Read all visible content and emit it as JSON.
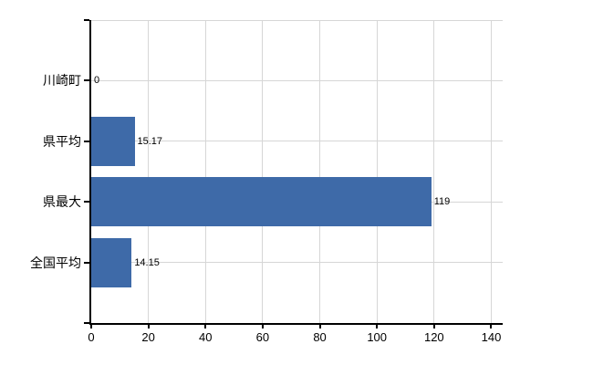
{
  "chart_data": {
    "type": "bar",
    "orientation": "horizontal",
    "title": "",
    "xlabel": "",
    "ylabel": "",
    "categories": [
      "川崎町",
      "県平均",
      "県最大",
      "全国平均"
    ],
    "values": [
      0,
      15.17,
      119,
      14.15
    ],
    "value_labels": [
      "0",
      "15.17",
      "119",
      "14.15"
    ],
    "x_ticks": [
      0,
      20,
      40,
      60,
      80,
      100,
      120,
      140
    ],
    "x_tick_labels": [
      "0",
      "20",
      "40",
      "60",
      "80",
      "100",
      "120",
      "140"
    ],
    "xlim": [
      0,
      144
    ],
    "grid": "on",
    "legend": "none",
    "colors": {
      "bar": "#3e6aa8",
      "axis": "#000000",
      "gridline": "#d6d6d6",
      "label": "#000000",
      "background": "#ffffff"
    }
  }
}
